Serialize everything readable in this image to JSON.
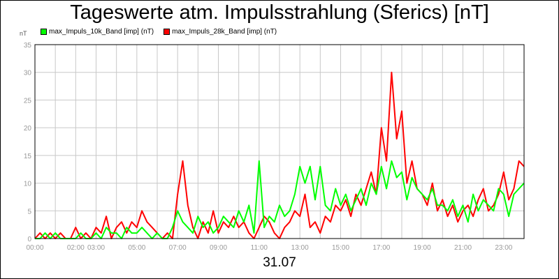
{
  "page": {
    "title": "Tageswerte atm. Impulsstrahlung (Sferics) [nT]",
    "date_label": "31.07",
    "unit_label": "nT"
  },
  "chart_data": {
    "type": "line",
    "title": "Tageswerte atm. Impulsstrahlung (Sferics) [nT]",
    "xlabel": "31.07",
    "ylabel": "nT",
    "xlim": [
      0,
      24
    ],
    "ylim": [
      0,
      35
    ],
    "grid": true,
    "legend_position": "top-left",
    "x_ticks": [
      "00:00",
      "02:00",
      "03:00",
      "05:00",
      "07:00",
      "09:00",
      "11:00",
      "13:00",
      "15:00",
      "17:00",
      "19:00",
      "21:00",
      "23:00"
    ],
    "x_tick_hours": [
      0,
      2,
      3,
      5,
      7,
      9,
      11,
      13,
      15,
      17,
      19,
      21,
      23
    ],
    "y_ticks": [
      "0",
      "5",
      "10",
      "15",
      "20",
      "25",
      "30",
      "35"
    ],
    "y_tick_values": [
      0,
      5,
      10,
      15,
      20,
      25,
      30,
      35
    ],
    "series": [
      {
        "name": "max_Impuls_28k_Band [imp] (nT)",
        "color": "#ff0000",
        "x": [
          0.0,
          0.25,
          0.5,
          0.75,
          1.0,
          1.25,
          1.5,
          1.75,
          2.0,
          2.25,
          2.5,
          2.75,
          3.0,
          3.25,
          3.5,
          3.75,
          4.0,
          4.25,
          4.5,
          4.75,
          5.0,
          5.25,
          5.5,
          5.75,
          6.0,
          6.25,
          6.5,
          6.75,
          7.0,
          7.25,
          7.5,
          7.75,
          8.0,
          8.25,
          8.5,
          8.75,
          9.0,
          9.25,
          9.5,
          9.75,
          10.0,
          10.25,
          10.5,
          10.75,
          11.0,
          11.25,
          11.5,
          11.75,
          12.0,
          12.25,
          12.5,
          12.75,
          13.0,
          13.25,
          13.5,
          13.75,
          14.0,
          14.25,
          14.5,
          14.75,
          15.0,
          15.25,
          15.5,
          15.75,
          16.0,
          16.25,
          16.5,
          16.75,
          17.0,
          17.25,
          17.5,
          17.75,
          18.0,
          18.25,
          18.5,
          18.75,
          19.0,
          19.25,
          19.5,
          19.75,
          20.0,
          20.25,
          20.5,
          20.75,
          21.0,
          21.25,
          21.5,
          21.75,
          22.0,
          22.25,
          22.5,
          22.75,
          23.0,
          23.25,
          23.5,
          23.75,
          24.0
        ],
        "values": [
          0,
          1,
          0,
          1,
          0,
          1,
          0,
          0,
          2,
          0,
          1,
          0,
          2,
          1,
          4,
          0,
          2,
          3,
          1,
          3,
          2,
          5,
          3,
          2,
          1,
          0,
          1,
          0,
          8,
          14,
          6,
          2,
          0,
          3,
          1,
          5,
          1,
          3,
          2,
          4,
          2,
          3,
          1,
          0,
          2,
          4,
          3,
          1,
          0,
          2,
          3,
          5,
          4,
          8,
          2,
          3,
          1,
          4,
          3,
          6,
          5,
          7,
          4,
          8,
          6,
          9,
          12,
          8,
          20,
          14,
          30,
          18,
          23,
          10,
          14,
          9,
          8,
          6,
          10,
          5,
          7,
          4,
          6,
          3,
          5,
          6,
          4,
          7,
          9,
          5,
          6,
          8,
          12,
          7,
          9,
          14,
          13
        ]
      },
      {
        "name": "max_Impuls_10k_Band [imp] (nT)",
        "color": "#00ff00",
        "x": [
          0.0,
          0.25,
          0.5,
          0.75,
          1.0,
          1.25,
          1.5,
          1.75,
          2.0,
          2.25,
          2.5,
          2.75,
          3.0,
          3.25,
          3.5,
          3.75,
          4.0,
          4.25,
          4.5,
          4.75,
          5.0,
          5.25,
          5.5,
          5.75,
          6.0,
          6.25,
          6.5,
          6.75,
          7.0,
          7.25,
          7.5,
          7.75,
          8.0,
          8.25,
          8.5,
          8.75,
          9.0,
          9.25,
          9.5,
          9.75,
          10.0,
          10.25,
          10.5,
          10.75,
          11.0,
          11.25,
          11.5,
          11.75,
          12.0,
          12.25,
          12.5,
          12.75,
          13.0,
          13.25,
          13.5,
          13.75,
          14.0,
          14.25,
          14.5,
          14.75,
          15.0,
          15.25,
          15.5,
          15.75,
          16.0,
          16.25,
          16.5,
          16.75,
          17.0,
          17.25,
          17.5,
          17.75,
          18.0,
          18.25,
          18.5,
          18.75,
          19.0,
          19.25,
          19.5,
          19.75,
          20.0,
          20.25,
          20.5,
          20.75,
          21.0,
          21.25,
          21.5,
          21.75,
          22.0,
          22.25,
          22.5,
          22.75,
          23.0,
          23.25,
          23.5,
          23.75,
          24.0
        ],
        "values": [
          0,
          0,
          1,
          0,
          1,
          0,
          0,
          0,
          0,
          1,
          0,
          0,
          1,
          0,
          2,
          1,
          1,
          0,
          2,
          1,
          1,
          2,
          1,
          0,
          1,
          0,
          0,
          2,
          5,
          3,
          2,
          1,
          4,
          2,
          3,
          1,
          2,
          4,
          3,
          2,
          5,
          3,
          6,
          1,
          14,
          2,
          4,
          3,
          6,
          4,
          5,
          8,
          13,
          10,
          13,
          7,
          13,
          6,
          5,
          9,
          6,
          8,
          5,
          7,
          9,
          6,
          10,
          8,
          13,
          9,
          14,
          11,
          12,
          7,
          11,
          9,
          8,
          7,
          9,
          6,
          6,
          5,
          7,
          4,
          6,
          3,
          8,
          5,
          7,
          6,
          5,
          9,
          8,
          4,
          8,
          9,
          10
        ]
      }
    ]
  }
}
